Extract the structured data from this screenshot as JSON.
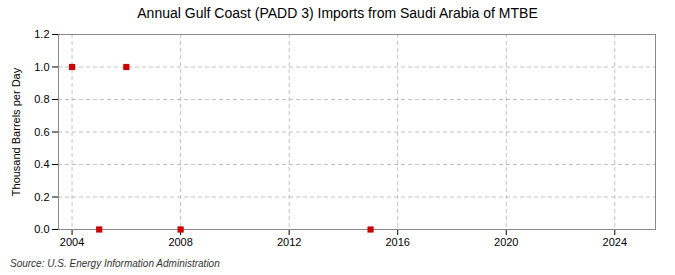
{
  "chart_data": {
    "type": "scatter",
    "title": "Annual Gulf Coast (PADD 3) Imports from Saudi Arabia of MTBE",
    "ylabel": "Thousand Barrels per Day",
    "annotations": [
      "Source: U.S. Energy Information Administration"
    ],
    "x": [
      2004,
      2005,
      2006,
      2008,
      2015
    ],
    "values": [
      1.0,
      0.0,
      1.0,
      0.0,
      0.0
    ],
    "color": "#cc0000",
    "marker": "square",
    "xlim": [
      2003.5,
      2025.5
    ],
    "xticks": [
      2004,
      2008,
      2012,
      2016,
      2020,
      2024
    ],
    "ylim": [
      0.0,
      1.2
    ],
    "yticks": [
      {
        "value": 0.0,
        "label": "0.0"
      },
      0.2,
      0.4,
      0.6,
      0.8,
      {
        "value": 1.0,
        "label": "1.0"
      },
      1.2
    ],
    "grid": true
  }
}
